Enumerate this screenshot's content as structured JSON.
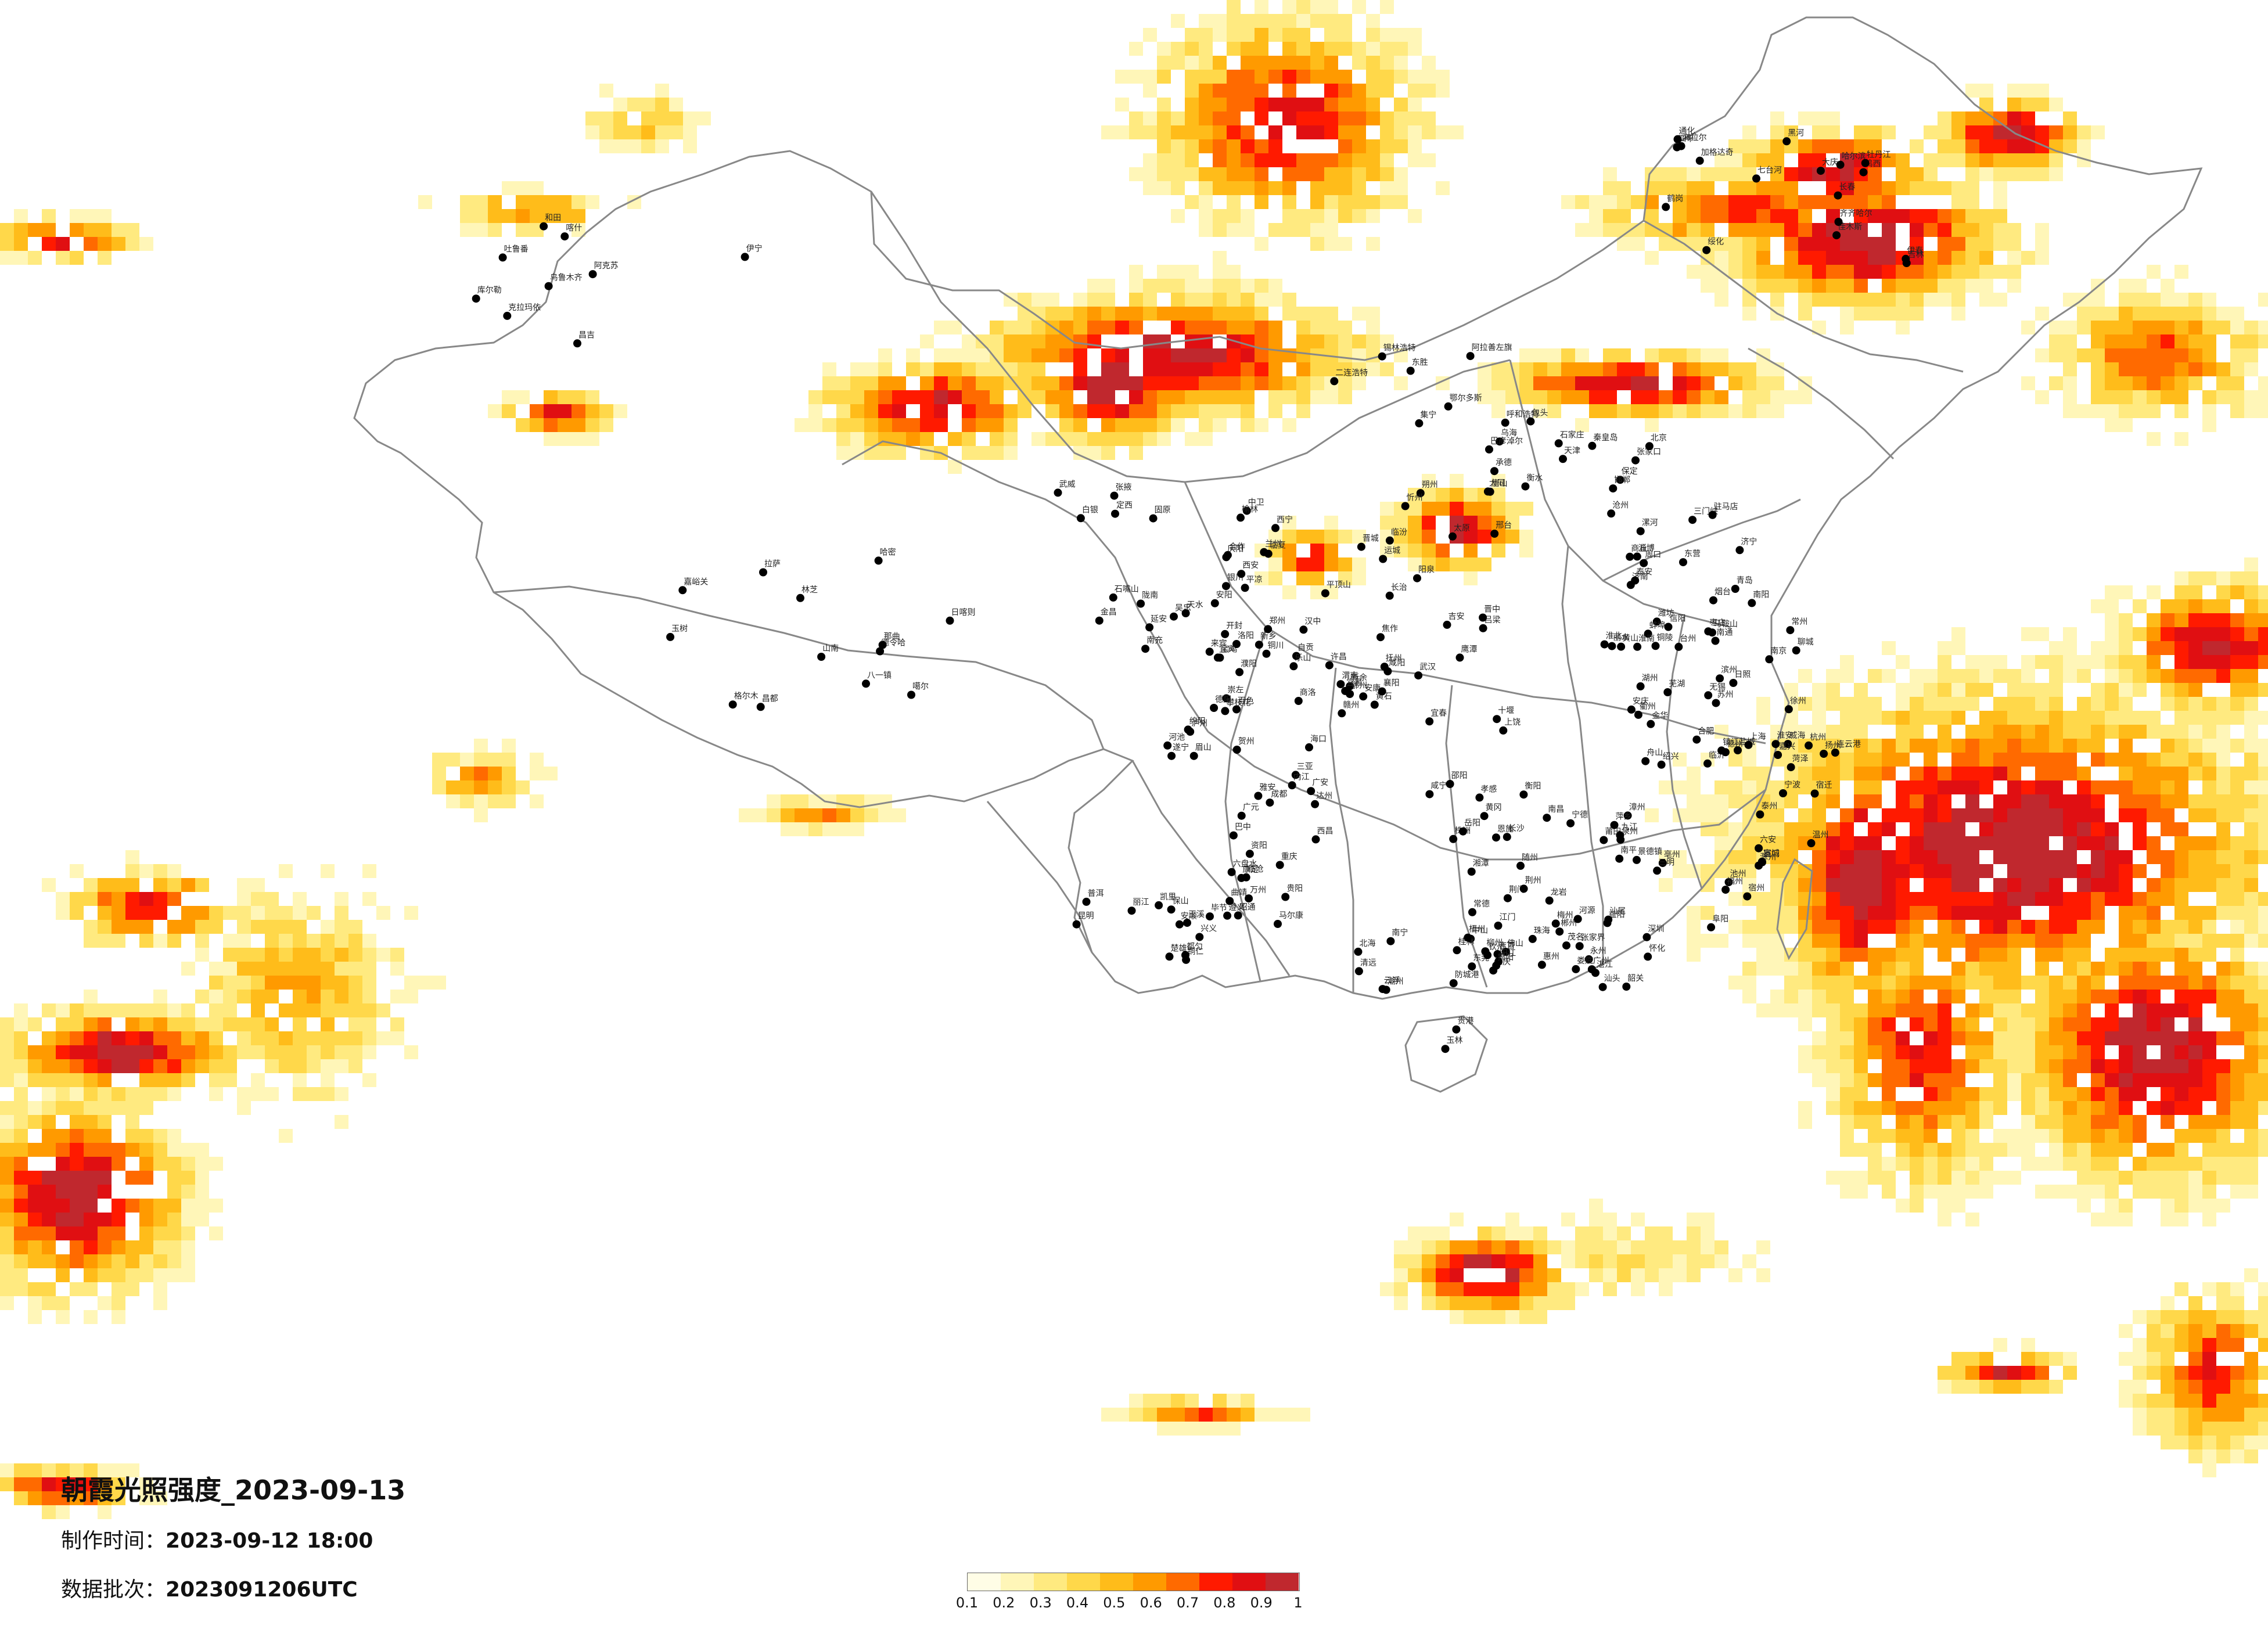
{
  "title": "朝霞光照强度_2023-09-13",
  "production_time": {
    "label": "制作时间：",
    "value": "2023-09-12 18:00"
  },
  "data_batch": {
    "label": "数据批次：",
    "value": "2023091206UTC"
  },
  "legend": {
    "ticks": [
      "0.1",
      "0.2",
      "0.3",
      "0.4",
      "0.5",
      "0.6",
      "0.7",
      "0.8",
      "0.9",
      "1"
    ],
    "colors": [
      "#fffde6",
      "#fff6b8",
      "#ffea80",
      "#ffd84a",
      "#ffbc1a",
      "#ff9a00",
      "#ff6a00",
      "#ff1a00",
      "#e00f12",
      "#c0282e"
    ]
  },
  "boundary_color": "#888888",
  "city_dot_color": "#000000",
  "cities": [
    "克拉玛依",
    "乌鲁木齐",
    "昌吉",
    "伊宁",
    "吐鲁番",
    "库尔勒",
    "阿克苏",
    "喀什",
    "和田",
    "哈密",
    "嘉峪关",
    "德令哈",
    "格尔木",
    "玉树",
    "那曲",
    "拉萨",
    "日喀则",
    "山南",
    "林芝",
    "八一镇",
    "噶尔",
    "昌都",
    "海拉尔",
    "加格达奇",
    "黑河",
    "伊春",
    "鹤岗",
    "佳木斯",
    "七台河",
    "鸡西",
    "牡丹江",
    "哈尔滨",
    "大庆",
    "齐齐哈尔",
    "绥化",
    "吉林",
    "长春",
    "四平",
    "通化",
    "锡林浩特",
    "呼和浩特",
    "包头",
    "二连浩特",
    "集宁",
    "乌海",
    "巴彦淖尔",
    "鄂尔多斯",
    "东胜",
    "阿拉善左旗",
    "张家口",
    "承德",
    "北京",
    "天津",
    "唐山",
    "秦皇岛",
    "石家庄",
    "保定",
    "沧州",
    "衡水",
    "邢台",
    "邯郸",
    "大同",
    "朔州",
    "忻州",
    "太原",
    "阳泉",
    "吕梁",
    "晋中",
    "长治",
    "晋城",
    "临汾",
    "运城",
    "银川",
    "石嘴山",
    "吴忠",
    "中卫",
    "固原",
    "西宁",
    "兰州",
    "武威",
    "张掖",
    "金昌",
    "白银",
    "定西",
    "天水",
    "平凉",
    "庆阳",
    "陇南",
    "临夏",
    "合作",
    "西安",
    "延安",
    "榆林",
    "宝鸡",
    "咸阳",
    "渭南",
    "汉中",
    "安康",
    "商洛",
    "铜川",
    "郑州",
    "开封",
    "洛阳",
    "平顶山",
    "安阳",
    "新乡",
    "焦作",
    "濮阳",
    "许昌",
    "漯河",
    "三门峡",
    "南阳",
    "商丘",
    "信阳",
    "周口",
    "驻马店",
    "济南",
    "青岛",
    "淄博",
    "枣庄",
    "东营",
    "烟台",
    "潍坊",
    "济宁",
    "泰安",
    "威海",
    "日照",
    "临沂",
    "德州",
    "聊城",
    "滨州",
    "菏泽",
    "南京",
    "无锡",
    "徐州",
    "常州",
    "苏州",
    "南通",
    "连云港",
    "淮安",
    "盐城",
    "扬州",
    "镇江",
    "泰州",
    "宿迁",
    "上海",
    "杭州",
    "宁波",
    "温州",
    "嘉兴",
    "湖州",
    "绍兴",
    "金华",
    "衢州",
    "舟山",
    "台州",
    "丽水",
    "合肥",
    "芜湖",
    "蚌埠",
    "淮南",
    "马鞍山",
    "淮北",
    "铜陵",
    "安庆",
    "黄山",
    "滁州",
    "阜阳",
    "宿州",
    "六安",
    "亳州",
    "池州",
    "宣城",
    "福州",
    "厦门",
    "莆田",
    "三明",
    "泉州",
    "漳州",
    "南平",
    "龙岩",
    "宁德",
    "南昌",
    "景德镇",
    "萍乡",
    "九江",
    "新余",
    "鹰潭",
    "赣州",
    "吉安",
    "宜春",
    "抚州",
    "上饶",
    "武汉",
    "黄石",
    "十堰",
    "宜昌",
    "襄阳",
    "鄂州",
    "荆门",
    "孝感",
    "荆州",
    "黄冈",
    "咸宁",
    "随州",
    "恩施",
    "长沙",
    "株洲",
    "湘潭",
    "衡阳",
    "邵阳",
    "岳阳",
    "常德",
    "张家界",
    "益阳",
    "郴州",
    "永州",
    "怀化",
    "娄底",
    "吉首",
    "广州",
    "韶关",
    "深圳",
    "珠海",
    "汕头",
    "佛山",
    "江门",
    "湛江",
    "茂名",
    "肇庆",
    "惠州",
    "梅州",
    "汕尾",
    "河源",
    "阳江",
    "清远",
    "东莞",
    "中山",
    "潮州",
    "揭阳",
    "云浮",
    "南宁",
    "柳州",
    "桂林",
    "梧州",
    "北海",
    "防城港",
    "钦州",
    "贵港",
    "玉林",
    "百色",
    "贺州",
    "河池",
    "来宾",
    "崇左",
    "海口",
    "三亚",
    "成都",
    "自贡",
    "攀枝花",
    "泸州",
    "德阳",
    "绵阳",
    "广元",
    "遂宁",
    "内江",
    "乐山",
    "南充",
    "眉山",
    "宜宾",
    "广安",
    "达州",
    "雅安",
    "巴中",
    "资阳",
    "马尔康",
    "康定",
    "西昌",
    "重庆",
    "万州",
    "贵阳",
    "六盘水",
    "遵义",
    "安顺",
    "毕节",
    "铜仁",
    "凯里",
    "都匀",
    "兴义",
    "昆明",
    "曲靖",
    "玉溪",
    "保山",
    "昭通",
    "丽江",
    "普洱",
    "临沧",
    "楚雄",
    "蒙自",
    "文山",
    "景洪",
    "大理",
    "芒市",
    "泸水",
    "香格里拉"
  ]
}
